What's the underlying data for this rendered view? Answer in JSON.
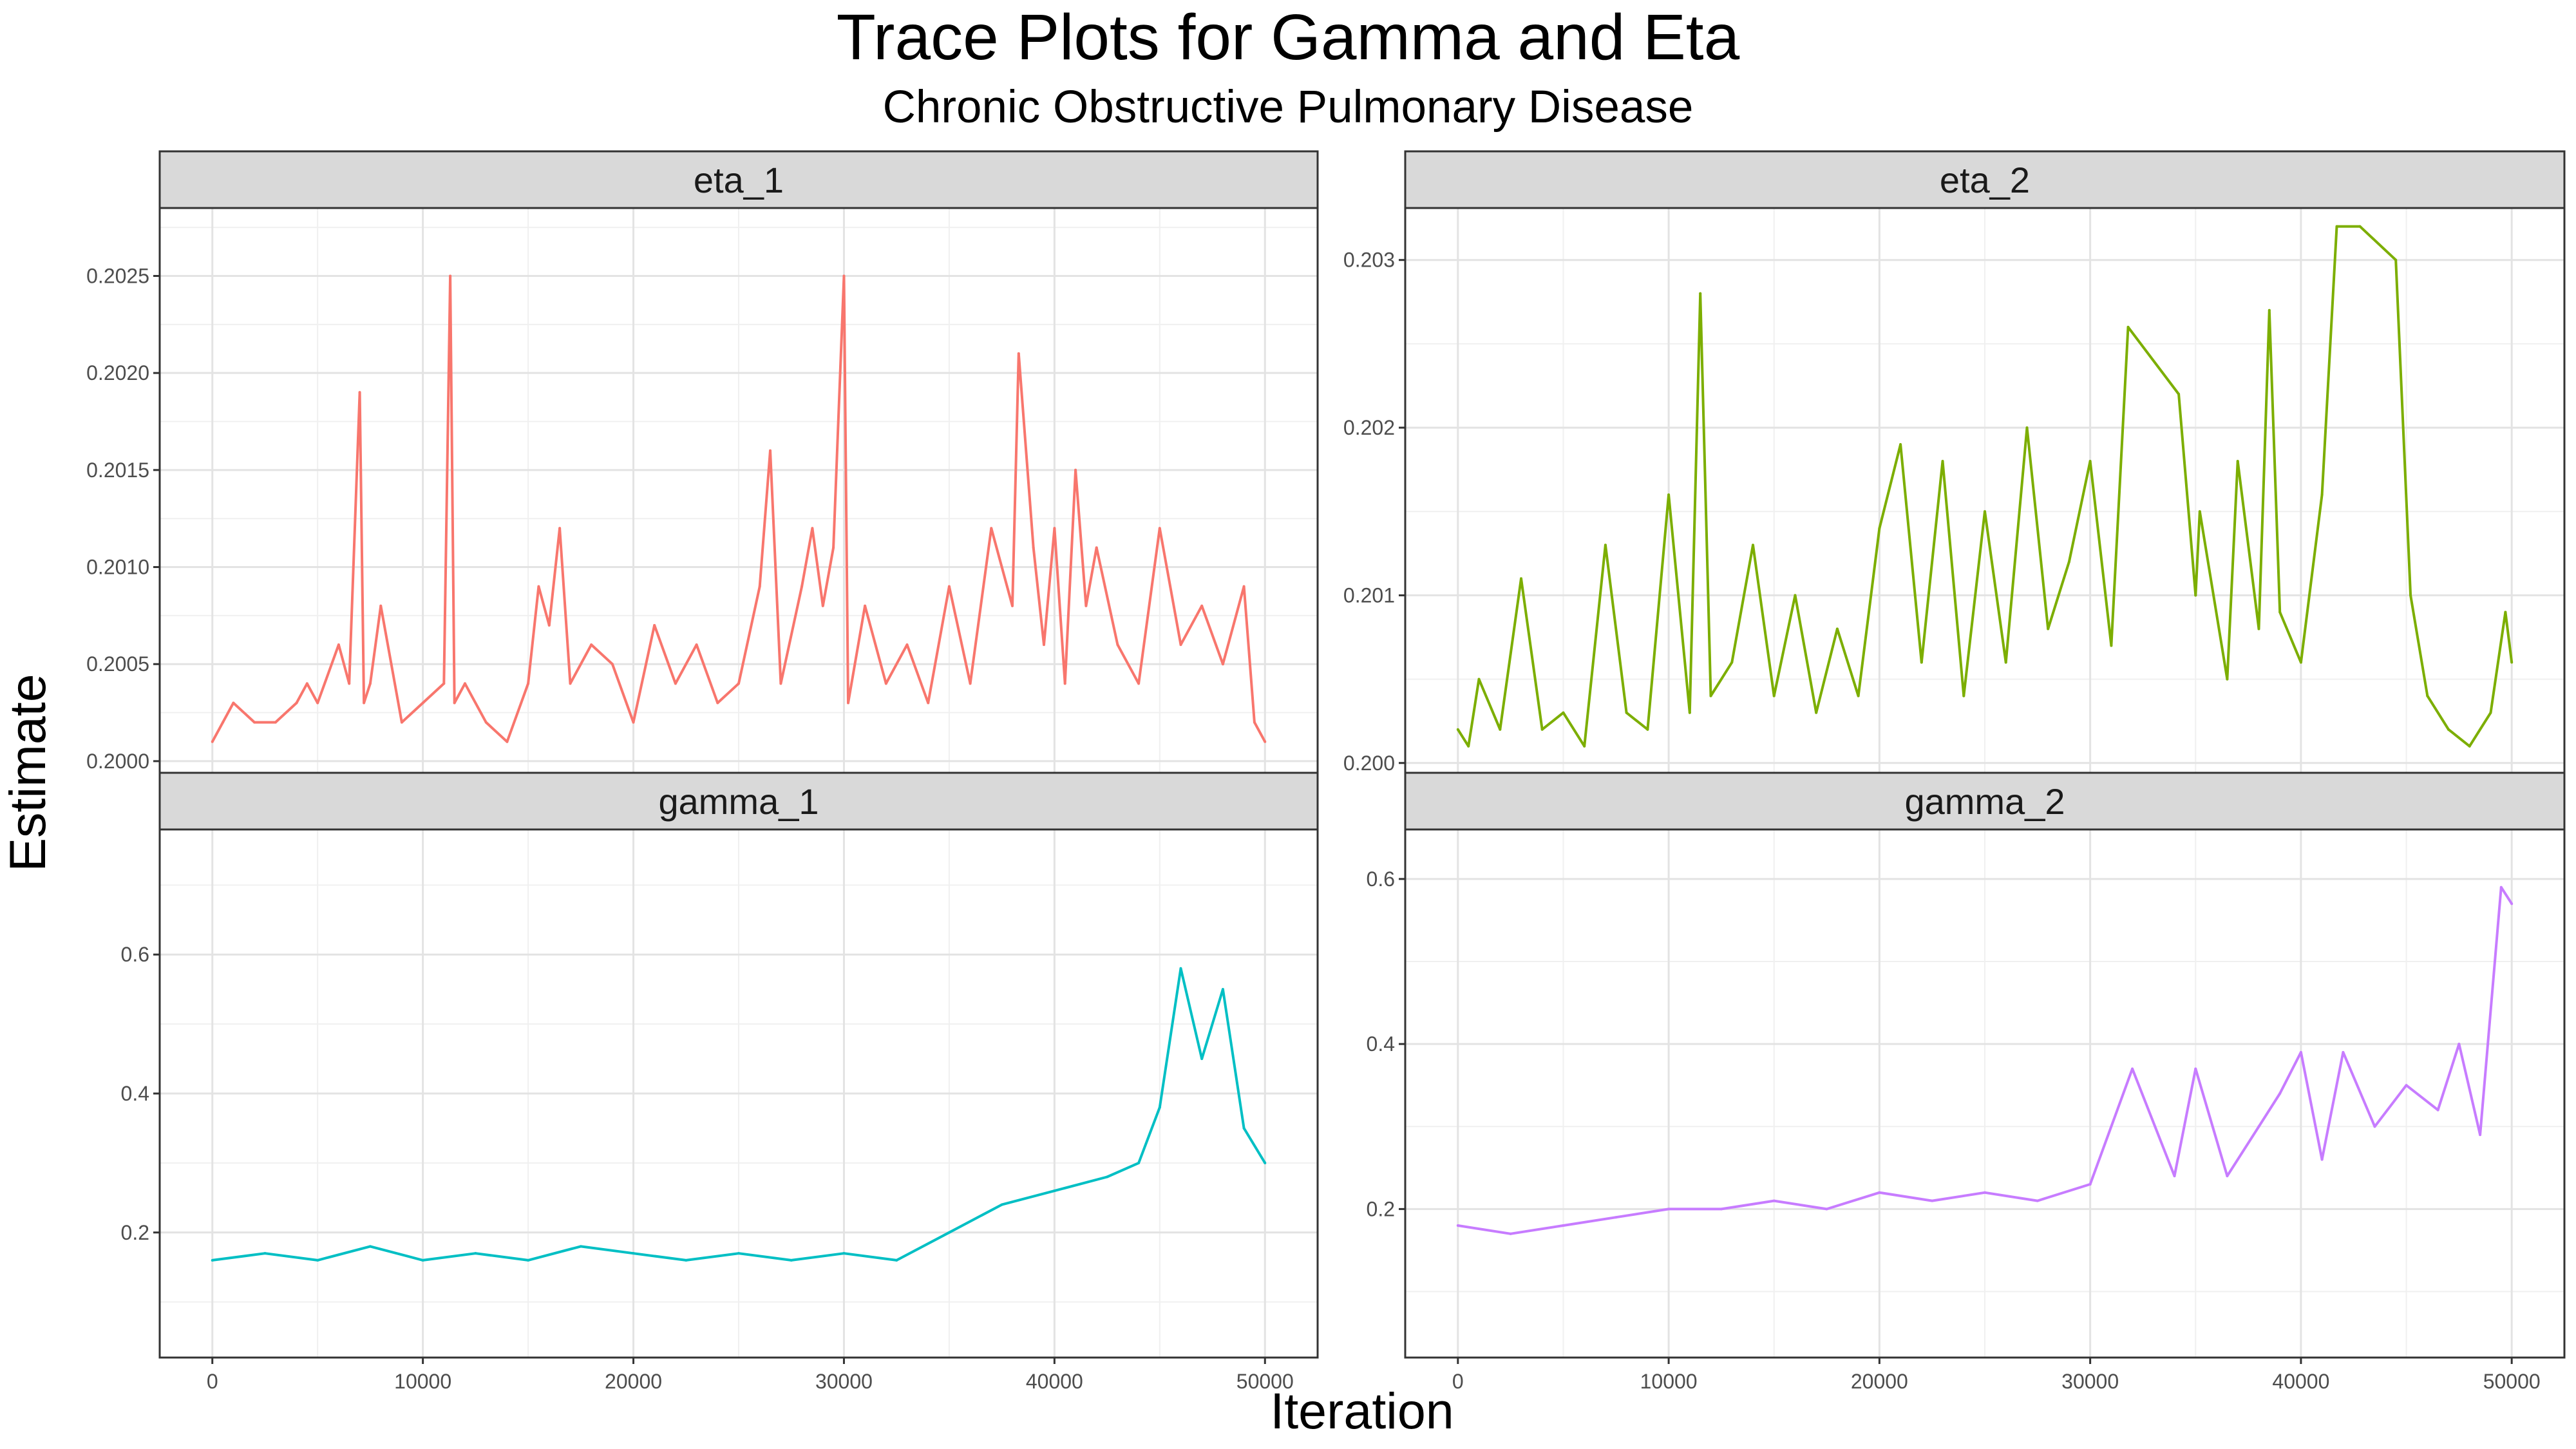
{
  "chart_data": {
    "type": "line",
    "title": "Trace Plots for Gamma and Eta",
    "subtitle": "Chronic Obstructive Pulmonary Disease",
    "xlabel": "Iteration",
    "ylabel": "Estimate",
    "grid": true,
    "legend": "none",
    "panels": [
      {
        "name": "eta_1",
        "color": "#F8766D",
        "xlim": [
          -2500,
          52500
        ],
        "ylim": [
          0.19993,
          0.20285
        ],
        "x_ticks": [
          0,
          10000,
          20000,
          30000,
          40000,
          50000
        ],
        "y_ticks": [
          0.2,
          0.2005,
          0.201,
          0.2015,
          0.202,
          0.2025
        ],
        "y_tick_labels": [
          "0.2000",
          "0.2005",
          "0.2010",
          "0.2015",
          "0.2020",
          "0.2025"
        ],
        "x_tick_labels": [
          "0",
          "10000",
          "20000",
          "30000",
          "40000",
          "50000"
        ],
        "series": [
          {
            "x": [
              0,
              500,
              1000,
              2000,
              3000,
              4000,
              4500,
              5000,
              6000,
              6500,
              7000,
              7200,
              7500,
              8000,
              8500,
              9000,
              10000,
              11000,
              11300,
              11500,
              12000,
              13000,
              14000,
              15000,
              15500,
              16000,
              16500,
              17000,
              18000,
              19000,
              20000,
              21000,
              22000,
              23000,
              24000,
              25000,
              26000,
              26500,
              27000,
              28000,
              28500,
              29000,
              29500,
              30000,
              30200,
              31000,
              32000,
              33000,
              34000,
              35000,
              36000,
              37000,
              38000,
              38300,
              39000,
              39500,
              40000,
              40500,
              41000,
              41500,
              42000,
              43000,
              44000,
              45000,
              46000,
              47000,
              48000,
              49000,
              49500,
              50000
            ],
            "y": [
              0.2001,
              0.2002,
              0.2003,
              0.2002,
              0.2002,
              0.2003,
              0.2004,
              0.2003,
              0.2006,
              0.2004,
              0.2019,
              0.2003,
              0.2004,
              0.2008,
              0.2005,
              0.2002,
              0.2003,
              0.2004,
              0.2025,
              0.2003,
              0.2004,
              0.2002,
              0.2001,
              0.2004,
              0.2009,
              0.2007,
              0.2012,
              0.2004,
              0.2006,
              0.2005,
              0.2002,
              0.2007,
              0.2004,
              0.2006,
              0.2003,
              0.2004,
              0.2009,
              0.2016,
              0.2004,
              0.2009,
              0.2012,
              0.2008,
              0.2011,
              0.2025,
              0.2003,
              0.2008,
              0.2004,
              0.2006,
              0.2003,
              0.2009,
              0.2004,
              0.2012,
              0.2008,
              0.2021,
              0.2011,
              0.2006,
              0.2012,
              0.2004,
              0.2015,
              0.2008,
              0.2011,
              0.2006,
              0.2004,
              0.2012,
              0.2006,
              0.2008,
              0.2005,
              0.2009,
              0.2002,
              0.2001
            ]
          }
        ]
      },
      {
        "name": "eta_2",
        "color": "#7CAE00",
        "xlim": [
          -2500,
          52500
        ],
        "ylim": [
          0.19993,
          0.20331
        ],
        "x_ticks": [
          0,
          10000,
          20000,
          30000,
          40000,
          50000
        ],
        "y_ticks": [
          0.2,
          0.201,
          0.202,
          0.203
        ],
        "y_tick_labels": [
          "0.200",
          "0.201",
          "0.202",
          "0.203"
        ],
        "x_tick_labels": [
          "0",
          "10000",
          "20000",
          "30000",
          "40000",
          "50000"
        ],
        "series": [
          {
            "x": [
              0,
              500,
              1000,
              2000,
              3000,
              4000,
              5000,
              6000,
              7000,
              8000,
              9000,
              10000,
              11000,
              11500,
              12000,
              13000,
              14000,
              15000,
              16000,
              17000,
              18000,
              19000,
              20000,
              21000,
              22000,
              23000,
              24000,
              25000,
              26000,
              27000,
              28000,
              29000,
              30000,
              31000,
              31800,
              34200,
              35000,
              35200,
              36500,
              37000,
              38000,
              38500,
              39000,
              40000,
              41000,
              41700,
              42800,
              44500,
              45200,
              46000,
              47000,
              48000,
              49000,
              49700,
              50000
            ],
            "y": [
              0.2002,
              0.2001,
              0.2005,
              0.2002,
              0.2011,
              0.2002,
              0.2003,
              0.2001,
              0.2013,
              0.2003,
              0.2002,
              0.2016,
              0.2003,
              0.2028,
              0.2004,
              0.2006,
              0.2013,
              0.2004,
              0.201,
              0.2003,
              0.2008,
              0.2004,
              0.2014,
              0.2019,
              0.2006,
              0.2018,
              0.2004,
              0.2015,
              0.2006,
              0.202,
              0.2008,
              0.2012,
              0.2018,
              0.2007,
              0.2026,
              0.2022,
              0.201,
              0.2015,
              0.2005,
              0.2018,
              0.2008,
              0.2027,
              0.2009,
              0.2006,
              0.2016,
              0.2032,
              0.2032,
              0.203,
              0.201,
              0.2004,
              0.2002,
              0.2001,
              0.2003,
              0.2009,
              0.2006
            ]
          }
        ]
      },
      {
        "name": "gamma_1",
        "color": "#00BFC4",
        "xlim": [
          -2500,
          52500
        ],
        "ylim": [
          0.02,
          0.78
        ],
        "x_ticks": [
          0,
          10000,
          20000,
          30000,
          40000,
          50000
        ],
        "y_ticks": [
          0.2,
          0.4,
          0.6
        ],
        "y_tick_labels": [
          "0.2",
          "0.4",
          "0.6"
        ],
        "x_tick_labels": [
          "0",
          "10000",
          "20000",
          "30000",
          "40000",
          "50000"
        ],
        "series": [
          {
            "x": [
              0,
              2500,
              5000,
              7500,
              10000,
              12500,
              15000,
              17500,
              20000,
              22500,
              25000,
              27500,
              30000,
              32500,
              35000,
              37500,
              40000,
              42500,
              44000,
              45000,
              46000,
              47000,
              48000,
              49000,
              50000
            ],
            "y": [
              0.16,
              0.17,
              0.16,
              0.18,
              0.16,
              0.17,
              0.16,
              0.18,
              0.17,
              0.16,
              0.17,
              0.16,
              0.17,
              0.16,
              0.2,
              0.24,
              0.26,
              0.28,
              0.3,
              0.38,
              0.58,
              0.45,
              0.55,
              0.35,
              0.3
            ]
          }
        ]
      },
      {
        "name": "gamma_2",
        "color": "#C77CFF",
        "xlim": [
          -2500,
          52500
        ],
        "ylim": [
          0.02,
          0.66
        ],
        "x_ticks": [
          0,
          10000,
          20000,
          30000,
          40000,
          50000
        ],
        "y_ticks": [
          0.2,
          0.4,
          0.6
        ],
        "y_tick_labels": [
          "0.2",
          "0.4",
          "0.6"
        ],
        "x_tick_labels": [
          "0",
          "10000",
          "20000",
          "30000",
          "40000",
          "50000"
        ],
        "series": [
          {
            "x": [
              0,
              2500,
              5000,
              7500,
              10000,
              12500,
              15000,
              17500,
              20000,
              22500,
              25000,
              27500,
              30000,
              32000,
              34000,
              35000,
              36500,
              38000,
              39000,
              40000,
              41000,
              42000,
              43500,
              45000,
              46500,
              47500,
              48500,
              49500,
              50000
            ],
            "y": [
              0.18,
              0.17,
              0.18,
              0.19,
              0.2,
              0.2,
              0.21,
              0.2,
              0.22,
              0.21,
              0.22,
              0.21,
              0.23,
              0.37,
              0.24,
              0.37,
              0.24,
              0.3,
              0.34,
              0.39,
              0.26,
              0.39,
              0.3,
              0.35,
              0.32,
              0.4,
              0.29,
              0.59,
              0.57
            ]
          }
        ]
      }
    ]
  }
}
